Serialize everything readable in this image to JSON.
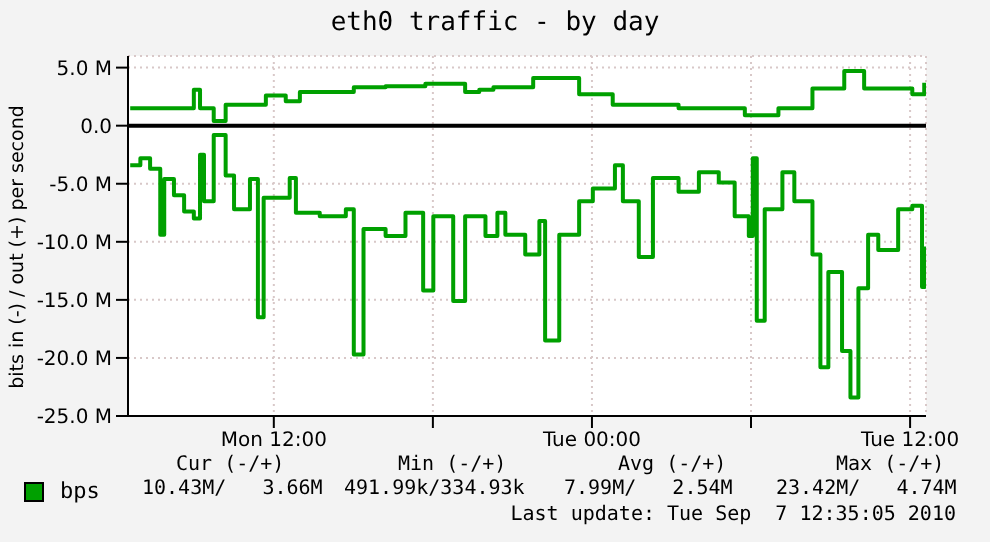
{
  "chart_data": {
    "type": "step",
    "title": "eth0 traffic - by day",
    "ylabel": "bits in (-) / out (+) per second",
    "xlim": [
      "2010-09-06T06:30",
      "2010-09-07T12:36"
    ],
    "xticks": [
      {
        "value": "2010-09-06T12:00",
        "label": "Mon 12:00"
      },
      {
        "value": "2010-09-06T18:00",
        "label": null
      },
      {
        "value": "2010-09-07T00:00",
        "label": "Tue 00:00"
      },
      {
        "value": "2010-09-07T06:00",
        "label": null
      },
      {
        "value": "2010-09-07T12:00",
        "label": "Tue 12:00"
      }
    ],
    "ylim": [
      -25,
      6
    ],
    "yticks": [
      {
        "value": 5,
        "label": "5.0 M"
      },
      {
        "value": 0,
        "label": "0.0"
      },
      {
        "value": -5,
        "label": "-5.0 M"
      },
      {
        "value": -10,
        "label": "-10.0 M"
      },
      {
        "value": -15,
        "label": "-15.0 M"
      },
      {
        "value": -20,
        "label": "-20.0 M"
      },
      {
        "value": -25,
        "label": "-25.0 M"
      }
    ],
    "grid": true,
    "legend": "bottom left",
    "line_style": "solid",
    "ref_lines": [
      {
        "axis": "y",
        "value": 0,
        "color": "#000000"
      }
    ],
    "series": [
      {
        "color": "#00a000",
        "x": [
          "2010-09-06T06:35",
          "2010-09-06T08:59",
          "2010-09-06T09:13",
          "2010-09-06T09:44",
          "2010-09-06T10:11",
          "2010-09-06T11:42",
          "2010-09-06T12:27",
          "2010-09-06T12:59",
          "2010-09-06T15:01",
          "2010-09-06T16:13",
          "2010-09-06T17:43",
          "2010-09-06T19:13",
          "2010-09-06T19:45",
          "2010-09-06T20:17",
          "2010-09-06T21:47",
          "2010-09-06T23:31",
          "2010-09-07T00:47",
          "2010-09-07T03:16",
          "2010-09-07T05:46",
          "2010-09-07T07:02",
          "2010-09-07T08:19",
          "2010-09-07T09:31",
          "2010-09-07T10:16",
          "2010-09-07T11:20",
          "2010-09-07T12:05",
          "2010-09-07T12:32"
        ],
        "values": [
          1.5,
          3.1,
          1.5,
          0.4,
          1.8,
          2.6,
          2.1,
          2.9,
          3.3,
          3.4,
          3.6,
          2.9,
          3.1,
          3.3,
          4.1,
          2.7,
          1.8,
          1.5,
          0.9,
          1.5,
          3.2,
          4.7,
          3.2,
          3.2,
          2.7,
          3.7
        ]
      },
      {
        "name": "bps",
        "color": "#00a000",
        "x": [
          "2010-09-06T06:35",
          "2010-09-06T06:58",
          "2010-09-06T07:20",
          "2010-09-06T07:43",
          "2010-09-06T07:52",
          "2010-09-06T08:14",
          "2010-09-06T08:37",
          "2010-09-06T08:59",
          "2010-09-06T09:13",
          "2010-09-06T09:22",
          "2010-09-06T09:44",
          "2010-09-06T10:11",
          "2010-09-06T10:30",
          "2010-09-06T11:06",
          "2010-09-06T11:24",
          "2010-09-06T11:37",
          "2010-09-06T12:14",
          "2010-09-06T12:36",
          "2010-09-06T12:50",
          "2010-09-06T13:44",
          "2010-09-06T14:43",
          "2010-09-06T15:01",
          "2010-09-06T15:23",
          "2010-09-06T16:13",
          "2010-09-06T16:58",
          "2010-09-06T17:38",
          "2010-09-06T18:01",
          "2010-09-06T18:46",
          "2010-09-06T19:13",
          "2010-09-06T19:59",
          "2010-09-06T20:26",
          "2010-09-06T20:44",
          "2010-09-06T21:29",
          "2010-09-06T22:01",
          "2010-09-06T22:14",
          "2010-09-06T22:46",
          "2010-09-06T23:31",
          "2010-09-07T00:02",
          "2010-09-07T00:52",
          "2010-09-07T01:10",
          "2010-09-07T01:46",
          "2010-09-07T02:18",
          "2010-09-07T03:16",
          "2010-09-07T04:02",
          "2010-09-07T04:47",
          "2010-09-07T05:23",
          "2010-09-07T05:55",
          "2010-09-07T06:04",
          "2010-09-07T06:13",
          "2010-09-07T06:31",
          "2010-09-07T07:11",
          "2010-09-07T07:38",
          "2010-09-07T08:19",
          "2010-09-07T08:37",
          "2010-09-07T08:55",
          "2010-09-07T09:26",
          "2010-09-07T09:45",
          "2010-09-07T10:03",
          "2010-09-07T10:25",
          "2010-09-07T10:48",
          "2010-09-07T11:33",
          "2010-09-07T12:05",
          "2010-09-07T12:27",
          "2010-09-07T12:32"
        ],
        "values": [
          -3.4,
          -2.8,
          -3.7,
          -9.4,
          -4.6,
          -6,
          -7.4,
          -8,
          -2.5,
          -6.5,
          -0.8,
          -4.3,
          -7.2,
          -4.6,
          -16.5,
          -6.2,
          -6.2,
          -4.5,
          -7.5,
          -7.8,
          -7.2,
          -19.7,
          -8.9,
          -9.5,
          -7.5,
          -14.2,
          -7.8,
          -15.1,
          -7.8,
          -9.5,
          -7.5,
          -9.4,
          -11.1,
          -8.2,
          -18.5,
          -9.4,
          -6.5,
          -5.4,
          -3.4,
          -6.5,
          -11.3,
          -4.5,
          -5.7,
          -4,
          -4.9,
          -7.8,
          -9.5,
          -2.8,
          -16.8,
          -7.2,
          -4,
          -6.5,
          -11.1,
          -20.8,
          -12.6,
          -19.4,
          -23.4,
          -14,
          -9.4,
          -10.7,
          -7.2,
          -6.9,
          -13.9,
          -10.4
        ]
      }
    ],
    "annotations": [
      "Cur (-/+)",
      "Min (-/+)",
      "Avg (-/+)",
      "Max (-/+)",
      "10.43M/   3.66M",
      "491.99k/334.93k",
      "7.99M/   2.54M",
      "23.42M/   4.74M",
      "Last update: Tue Sep  7 12:35:05 2010"
    ]
  }
}
